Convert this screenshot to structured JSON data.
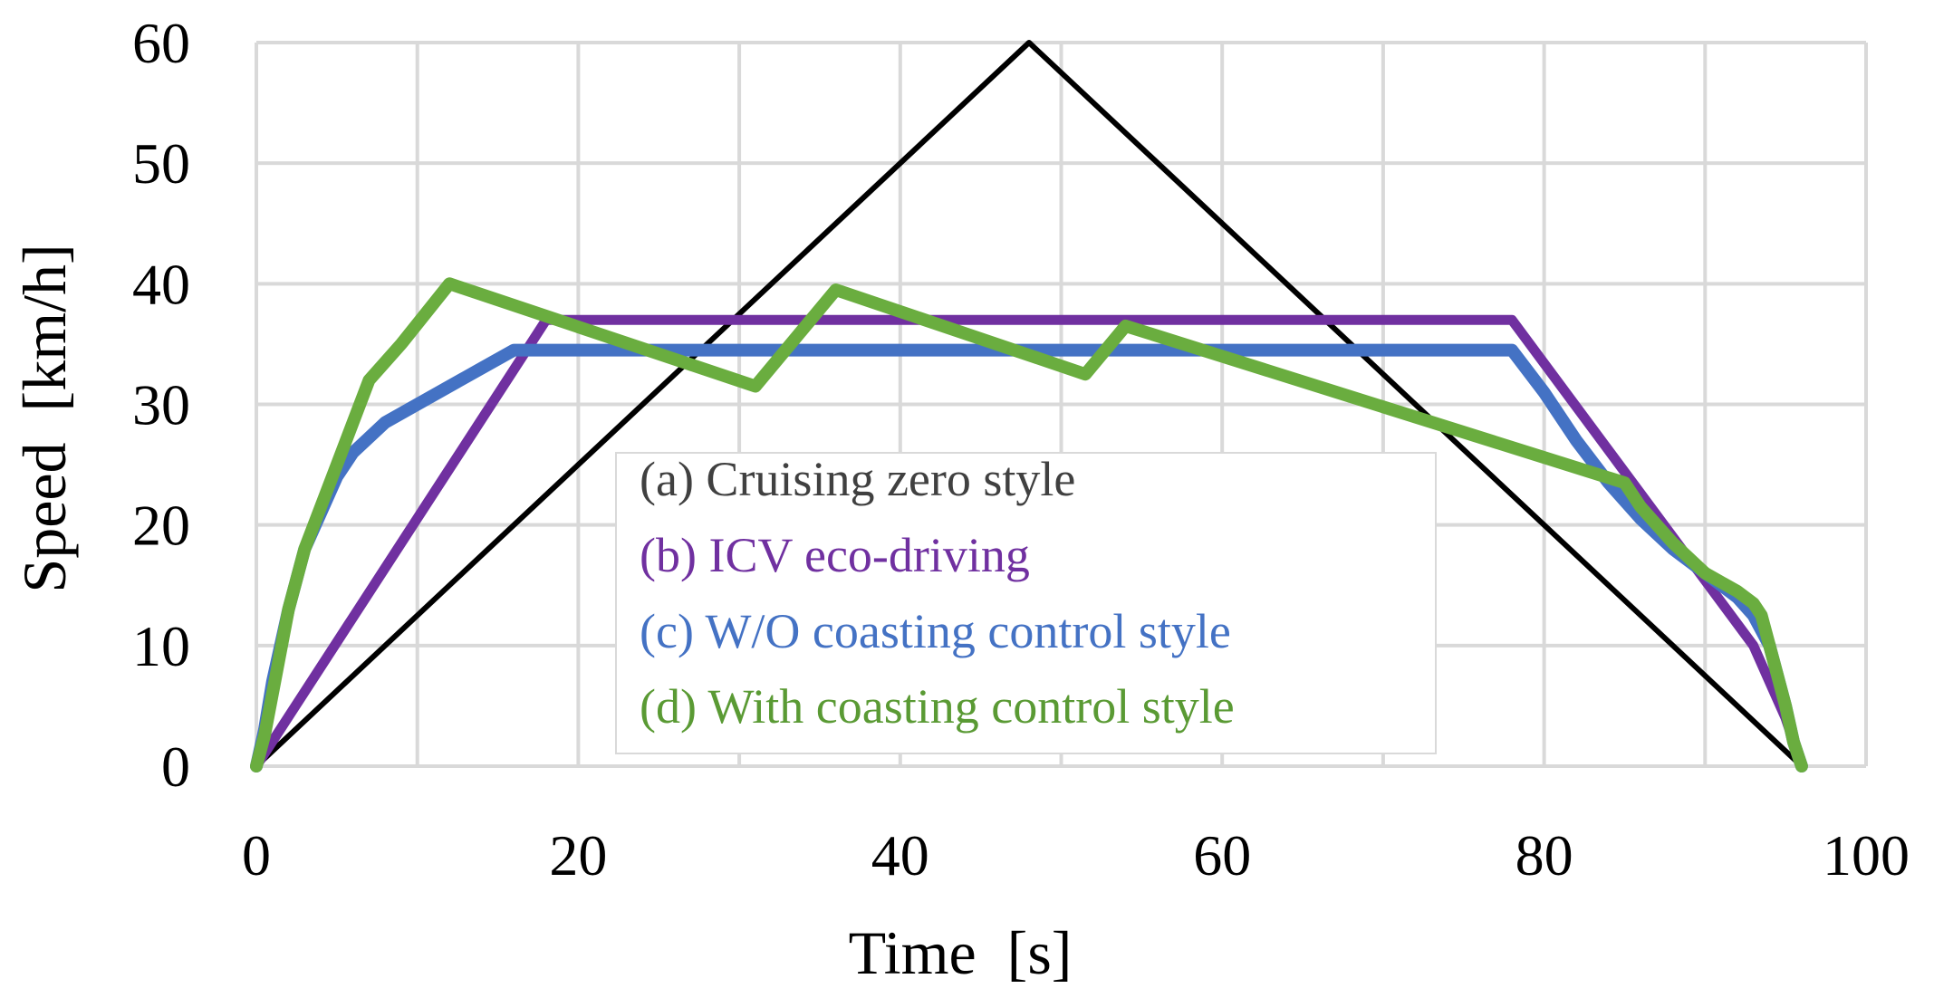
{
  "chart_data": {
    "type": "line",
    "title": "",
    "xlabel": "Time  [s]",
    "ylabel": "Speed  [km/h]",
    "xlim": [
      0,
      100
    ],
    "ylim": [
      0,
      60
    ],
    "x_ticks": [
      0,
      20,
      40,
      60,
      80,
      100
    ],
    "y_ticks": [
      0,
      10,
      20,
      30,
      40,
      50,
      60
    ],
    "grid": true,
    "legend_position": "center",
    "series": [
      {
        "name": "(a) Cruising zero style",
        "color": "#000000",
        "legend_color": "#404040",
        "x": [
          0,
          48,
          96
        ],
        "y": [
          0,
          60,
          0
        ]
      },
      {
        "name": "(b) ICV eco-driving",
        "color": "#7030A0",
        "legend_color": "#7030A0",
        "x": [
          0,
          18,
          78,
          93,
          95,
          96
        ],
        "y": [
          0,
          37,
          37,
          10,
          4,
          0
        ]
      },
      {
        "name": "(c) W/O coasting control style",
        "color": "#4472C4",
        "legend_color": "#4472C4",
        "x": [
          0,
          0.5,
          1,
          2,
          3,
          4,
          5,
          6,
          8,
          10,
          12,
          14,
          16,
          78,
          80,
          82,
          84,
          86,
          88,
          90,
          92,
          93,
          94,
          95,
          95.5,
          96
        ],
        "y": [
          0,
          3,
          7,
          13,
          18,
          21,
          24,
          26,
          28.5,
          30,
          31.5,
          33,
          34.5,
          34.5,
          31,
          27,
          23.5,
          20.5,
          18,
          16,
          14,
          12.5,
          10,
          5,
          2,
          0
        ]
      },
      {
        "name": "(d) With coasting control style",
        "color": "#6AAD3F",
        "legend_color": "#5A9A34",
        "x": [
          0,
          0.5,
          1,
          2,
          3,
          5,
          7,
          9,
          12,
          31,
          36,
          51.5,
          54,
          85,
          86,
          88,
          90,
          92,
          93,
          93.5,
          94,
          95,
          95.5,
          96
        ],
        "y": [
          0,
          2.5,
          6,
          13,
          18,
          25,
          32,
          35,
          40,
          31.5,
          39.5,
          32.5,
          36.5,
          23.5,
          21.5,
          18.5,
          16,
          14.5,
          13.5,
          12.5,
          10,
          5,
          2,
          0
        ]
      }
    ]
  }
}
